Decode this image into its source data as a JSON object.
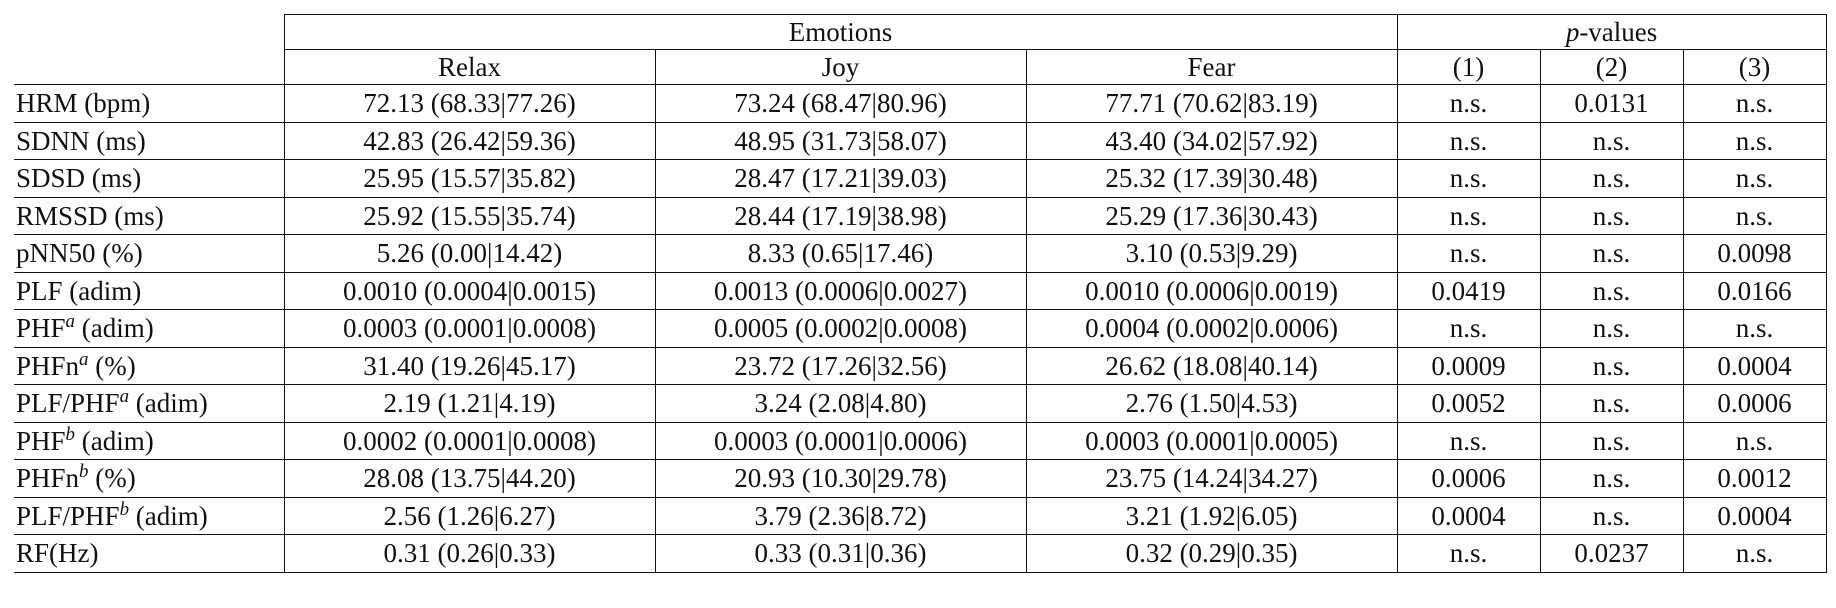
{
  "header": {
    "group_emotions": "Emotions",
    "group_pvalues_italic": "p",
    "group_pvalues_rest": "-values",
    "columns": [
      "Relax",
      "Joy",
      "Fear",
      "(1)",
      "(2)",
      "(3)"
    ]
  },
  "rows": [
    {
      "name": "HRM (bpm)",
      "sup": "",
      "unit": "",
      "cells": [
        "72.13 (68.33|77.26)",
        "73.24 (68.47|80.96)",
        "77.71 (70.62|83.19)",
        "n.s.",
        "0.0131",
        "n.s."
      ]
    },
    {
      "name": "SDNN (ms)",
      "sup": "",
      "unit": "",
      "cells": [
        "42.83 (26.42|59.36)",
        "48.95 (31.73|58.07)",
        "43.40 (34.02|57.92)",
        "n.s.",
        "n.s.",
        "n.s."
      ]
    },
    {
      "name": "SDSD (ms)",
      "sup": "",
      "unit": "",
      "cells": [
        "25.95 (15.57|35.82)",
        "28.47 (17.21|39.03)",
        "25.32 (17.39|30.48)",
        "n.s.",
        "n.s.",
        "n.s."
      ]
    },
    {
      "name": "RMSSD (ms)",
      "sup": "",
      "unit": "",
      "cells": [
        "25.92 (15.55|35.74)",
        "28.44 (17.19|38.98)",
        "25.29 (17.36|30.43)",
        "n.s.",
        "n.s.",
        "n.s."
      ]
    },
    {
      "name": "pNN50 (%)",
      "sup": "",
      "unit": "",
      "cells": [
        "5.26 (0.00|14.42)",
        "8.33 (0.65|17.46)",
        "3.10 (0.53|9.29)",
        "n.s.",
        "n.s.",
        "0.0098"
      ]
    },
    {
      "name": "PLF (adim)",
      "sup": "",
      "unit": "",
      "cells": [
        "0.0010 (0.0004|0.0015)",
        "0.0013 (0.0006|0.0027)",
        "0.0010 (0.0006|0.0019)",
        "0.0419",
        "n.s.",
        "0.0166"
      ]
    },
    {
      "name": "PHF",
      "sup": "a",
      "unit": " (adim)",
      "cells": [
        "0.0003 (0.0001|0.0008)",
        "0.0005 (0.0002|0.0008)",
        "0.0004 (0.0002|0.0006)",
        "n.s.",
        "n.s.",
        "n.s."
      ]
    },
    {
      "name": "PHFn",
      "sup": "a",
      "unit": " (%)",
      "cells": [
        "31.40 (19.26|45.17)",
        "23.72 (17.26|32.56)",
        "26.62 (18.08|40.14)",
        "0.0009",
        "n.s.",
        "0.0004"
      ]
    },
    {
      "name": "PLF/PHF",
      "sup": "a",
      "unit": " (adim)",
      "cells": [
        "2.19 (1.21|4.19)",
        "3.24 (2.08|4.80)",
        "2.76 (1.50|4.53)",
        "0.0052",
        "n.s.",
        "0.0006"
      ]
    },
    {
      "name": "PHF",
      "sup": "b",
      "unit": " (adim)",
      "cells": [
        "0.0002 (0.0001|0.0008)",
        "0.0003 (0.0001|0.0006)",
        "0.0003 (0.0001|0.0005)",
        "n.s.",
        "n.s.",
        "n.s."
      ]
    },
    {
      "name": "PHFn",
      "sup": "b",
      "unit": " (%)",
      "cells": [
        "28.08 (13.75|44.20)",
        "20.93 (10.30|29.78)",
        "23.75 (14.24|34.27)",
        "0.0006",
        "n.s.",
        "0.0012"
      ]
    },
    {
      "name": "PLF/PHF",
      "sup": "b",
      "unit": " (adim)",
      "cells": [
        "2.56 (1.26|6.27)",
        "3.79 (2.36|8.72)",
        "3.21 (1.92|6.05)",
        "0.0004",
        "n.s.",
        "0.0004"
      ]
    },
    {
      "name": "RF(Hz)",
      "sup": "",
      "unit": "",
      "cells": [
        "0.31 (0.26|0.33)",
        "0.33 (0.31|0.36)",
        "0.32 (0.29|0.35)",
        "n.s.",
        "0.0237",
        "n.s."
      ]
    }
  ]
}
